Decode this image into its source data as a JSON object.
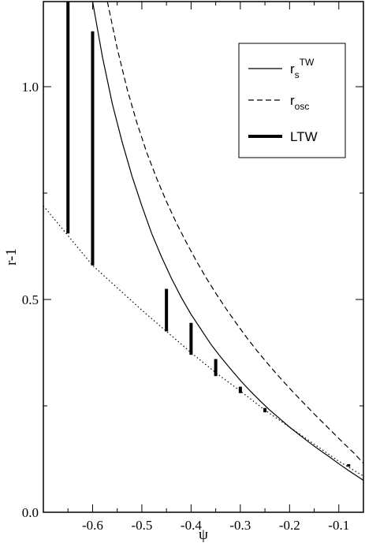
{
  "chart_data": {
    "type": "line",
    "xlabel": "ψ",
    "ylabel": "r-1",
    "xlim": [
      -0.7,
      -0.05
    ],
    "ylim": [
      0.0,
      1.2
    ],
    "x_ticks": [
      -0.6,
      -0.5,
      -0.4,
      -0.3,
      -0.2,
      -0.1
    ],
    "x_tick_labels": [
      "-0.6",
      "-0.5",
      "-0.4",
      "-0.3",
      "-0.2",
      "-0.1"
    ],
    "y_ticks": [
      0.0,
      0.5,
      1.0
    ],
    "y_tick_labels": [
      "0.0",
      "0.5",
      "1.0"
    ],
    "grid": false,
    "legend_position": "top-right",
    "legend": [
      {
        "base": "r",
        "sub": "s",
        "sup": "TW",
        "style": "solid"
      },
      {
        "base": "r",
        "sub": "osc",
        "sup": "",
        "style": "dashed"
      },
      {
        "base": "LTW",
        "sub": "",
        "sup": "",
        "style": "thick"
      }
    ],
    "series": [
      {
        "style": "solid",
        "x": [
          -0.6,
          -0.58,
          -0.56,
          -0.54,
          -0.52,
          -0.5,
          -0.48,
          -0.46,
          -0.44,
          -0.42,
          -0.4,
          -0.38,
          -0.36,
          -0.34,
          -0.32,
          -0.3,
          -0.28,
          -0.26,
          -0.24,
          -0.22,
          -0.2,
          -0.18,
          -0.16,
          -0.14,
          -0.12,
          -0.1,
          -0.08,
          -0.05
        ],
        "y": [
          1.2,
          1.07,
          0.96,
          0.87,
          0.79,
          0.72,
          0.655,
          0.6,
          0.55,
          0.505,
          0.465,
          0.43,
          0.395,
          0.365,
          0.337,
          0.31,
          0.285,
          0.262,
          0.24,
          0.22,
          0.2,
          0.182,
          0.164,
          0.147,
          0.131,
          0.114,
          0.098,
          0.075
        ]
      },
      {
        "style": "dashed",
        "x": [
          -0.57,
          -0.55,
          -0.53,
          -0.51,
          -0.49,
          -0.47,
          -0.45,
          -0.43,
          -0.41,
          -0.39,
          -0.37,
          -0.35,
          -0.33,
          -0.31,
          -0.29,
          -0.27,
          -0.25,
          -0.23,
          -0.21,
          -0.19,
          -0.17,
          -0.15,
          -0.13,
          -0.11,
          -0.09,
          -0.07,
          -0.05
        ],
        "y": [
          1.2,
          1.09,
          0.995,
          0.915,
          0.845,
          0.785,
          0.73,
          0.68,
          0.635,
          0.592,
          0.552,
          0.515,
          0.48,
          0.447,
          0.415,
          0.385,
          0.357,
          0.33,
          0.304,
          0.279,
          0.255,
          0.231,
          0.208,
          0.185,
          0.162,
          0.14,
          0.115
        ]
      },
      {
        "style": "dotted",
        "x": [
          -0.7,
          -0.6,
          -0.5,
          -0.4,
          -0.35,
          -0.3,
          -0.25,
          -0.2,
          -0.15,
          -0.1,
          -0.05
        ],
        "y": [
          0.72,
          0.58,
          0.475,
          0.375,
          0.328,
          0.285,
          0.24,
          0.2,
          0.16,
          0.12,
          0.085
        ]
      }
    ],
    "ltw_bars": [
      {
        "x": -0.65,
        "y_low": 0.655,
        "y_high": 1.2
      },
      {
        "x": -0.6,
        "y_low": 0.58,
        "y_high": 1.13
      },
      {
        "x": -0.45,
        "y_low": 0.425,
        "y_high": 0.525
      },
      {
        "x": -0.4,
        "y_low": 0.37,
        "y_high": 0.445
      },
      {
        "x": -0.35,
        "y_low": 0.32,
        "y_high": 0.36
      },
      {
        "x": -0.3,
        "y_low": 0.28,
        "y_high": 0.295
      },
      {
        "x": -0.25,
        "y_low": 0.235,
        "y_high": 0.245
      },
      {
        "x": -0.08,
        "y_low": 0.107,
        "y_high": 0.113
      }
    ]
  }
}
